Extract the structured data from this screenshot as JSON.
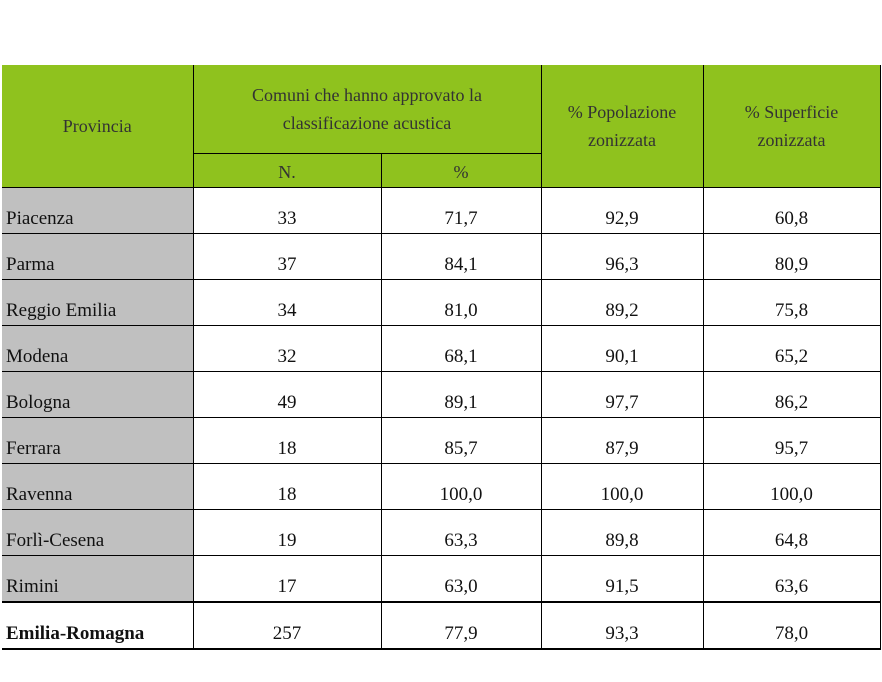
{
  "header": {
    "provincia": "Provincia",
    "comuni": "Comuni che hanno approvato la classificazione acustica",
    "n": "N.",
    "pct": "%",
    "popolazione": "% Popolazione zonizzata",
    "superficie": "% Superficie zonizzata"
  },
  "rows": [
    [
      "Piacenza",
      "33",
      "71,7",
      "92,9",
      "60,8"
    ],
    [
      "Parma",
      "37",
      "84,1",
      "96,3",
      "80,9"
    ],
    [
      "Reggio Emilia",
      "34",
      "81,0",
      "89,2",
      "75,8"
    ],
    [
      "Modena",
      "32",
      "68,1",
      "90,1",
      "65,2"
    ],
    [
      "Bologna",
      "49",
      "89,1",
      "97,7",
      "86,2"
    ],
    [
      "Ferrara",
      "18",
      "85,7",
      "87,9",
      "95,7"
    ],
    [
      "Ravenna",
      "18",
      "100,0",
      "100,0",
      "100,0"
    ],
    [
      "Forlì-Cesena",
      "19",
      "63,3",
      "89,8",
      "64,8"
    ],
    [
      "Rimini",
      "17",
      "63,0",
      "91,5",
      "63,6"
    ]
  ],
  "total": [
    "Emilia-Romagna",
    "257",
    "77,9",
    "93,3",
    "78,0"
  ]
}
